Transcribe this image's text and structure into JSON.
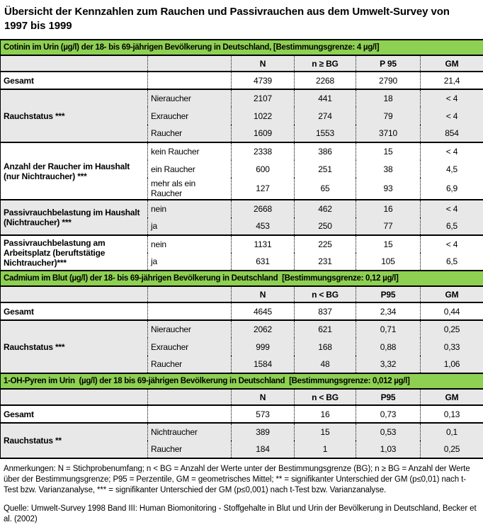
{
  "title": "Übersicht der Kennzahlen zum Rauchen und Passivrauchen aus dem Umwelt-Survey von 1997 bis 1999",
  "colors": {
    "section_header_bg": "#8ed052",
    "shaded_row_bg": "#e8e8e8",
    "border": "#000000"
  },
  "sections": [
    {
      "title": "Cotinin im Urin (µg/l) der 18- bis 69-jährigen Bevölkerung in Deutschland, [Bestimmungsgrenze: 4 µg/l]",
      "columns": [
        "N",
        "n ≥ BG",
        "P 95",
        "GM"
      ],
      "groups": [
        {
          "label": "Gesamt",
          "rows": [
            {
              "sublabel": "",
              "values": [
                "4739",
                "2268",
                "2790",
                "21,4"
              ]
            }
          ]
        },
        {
          "label": "Rauchstatus ***",
          "rows": [
            {
              "sublabel": "Nieraucher",
              "values": [
                "2107",
                "441",
                "18",
                "< 4"
              ]
            },
            {
              "sublabel": "Exraucher",
              "values": [
                "1022",
                "274",
                "79",
                "< 4"
              ]
            },
            {
              "sublabel": "Raucher",
              "values": [
                "1609",
                "1553",
                "3710",
                "854"
              ]
            }
          ]
        },
        {
          "label": "Anzahl der Raucher im Haushalt (nur Nichtraucher) ***",
          "rows": [
            {
              "sublabel": "kein Raucher",
              "values": [
                "2338",
                "386",
                "15",
                "< 4"
              ]
            },
            {
              "sublabel": "ein Raucher",
              "values": [
                "600",
                "251",
                "38",
                "4,5"
              ]
            },
            {
              "sublabel": "mehr als ein Raucher",
              "values": [
                "127",
                "65",
                "93",
                "6,9"
              ]
            }
          ]
        },
        {
          "label": "Passivrauchbelastung im Haushalt (Nichtraucher) ***",
          "rows": [
            {
              "sublabel": "nein",
              "values": [
                "2668",
                "462",
                "16",
                "< 4"
              ]
            },
            {
              "sublabel": "ja",
              "values": [
                "453",
                "250",
                "77",
                "6,5"
              ]
            }
          ]
        },
        {
          "label": "Passivrauchbelastung am Arbeitsplatz (beruftstätige Nichtraucher)***",
          "rows": [
            {
              "sublabel": "nein",
              "values": [
                "1131",
                "225",
                "15",
                "< 4"
              ]
            },
            {
              "sublabel": "ja",
              "values": [
                "631",
                "231",
                "105",
                "6,5"
              ]
            }
          ]
        }
      ]
    },
    {
      "title": "Cadmium im Blut (µg/l) der 18- bis 69-jährigen Bevölkerung in Deutschland  [Bestimmungsgrenze: 0,12 µg/l]",
      "columns": [
        "N",
        "n < BG",
        "P95",
        "GM"
      ],
      "groups": [
        {
          "label": "Gesamt",
          "rows": [
            {
              "sublabel": "",
              "values": [
                "4645",
                "837",
                "2,34",
                "0,44"
              ]
            }
          ]
        },
        {
          "label": "Rauchstatus ***",
          "rows": [
            {
              "sublabel": "Nieraucher",
              "values": [
                "2062",
                "621",
                "0,71",
                "0,25"
              ]
            },
            {
              "sublabel": "Exraucher",
              "values": [
                "999",
                "168",
                "0,88",
                "0,33"
              ]
            },
            {
              "sublabel": "Raucher",
              "values": [
                "1584",
                "48",
                "3,32",
                "1,06"
              ]
            }
          ]
        }
      ]
    },
    {
      "title": "1-OH-Pyren im Urin  (µg/l) der 18 bis 69-jährigen Bevölkerung in Deutschland  [Bestimmungsgrenze: 0,012 µg/l]",
      "columns": [
        "N",
        "n < BG",
        "P95",
        "GM"
      ],
      "groups": [
        {
          "label": "Gesamt",
          "rows": [
            {
              "sublabel": "",
              "values": [
                "573",
                "16",
                "0,73",
                "0,13"
              ]
            }
          ]
        },
        {
          "label": "Rauchstatus **",
          "rows": [
            {
              "sublabel": "Nichtraucher",
              "values": [
                "389",
                "15",
                "0,53",
                "0,1"
              ]
            },
            {
              "sublabel": "Raucher",
              "values": [
                "184",
                "1",
                "1,03",
                "0,25"
              ]
            }
          ]
        }
      ]
    }
  ],
  "notes": "Anmerkungen: N = Stichprobenumfang; n < BG = Anzahl der Werte unter der Bestimmungsgrenze (BG); n ≥ BG = Anzahl der Werte über der Bestimmungsgrenze; P95 = Perzentile, GM = geometrisches Mittel; ** = signifikanter Unterschied der GM (p≤0,01) nach t-Test bzw. Varianzanalyse, *** = signifikanter Unterschied der GM (p≤0,001) nach t-Test bzw. Varianzanalyse.",
  "source": "Quelle: Umwelt-Survey 1998 Band III: Human Biomonitoring - Stoffgehalte in Blut und Urin der Bevölkerung in Deutschland, Becker et al. (2002)"
}
